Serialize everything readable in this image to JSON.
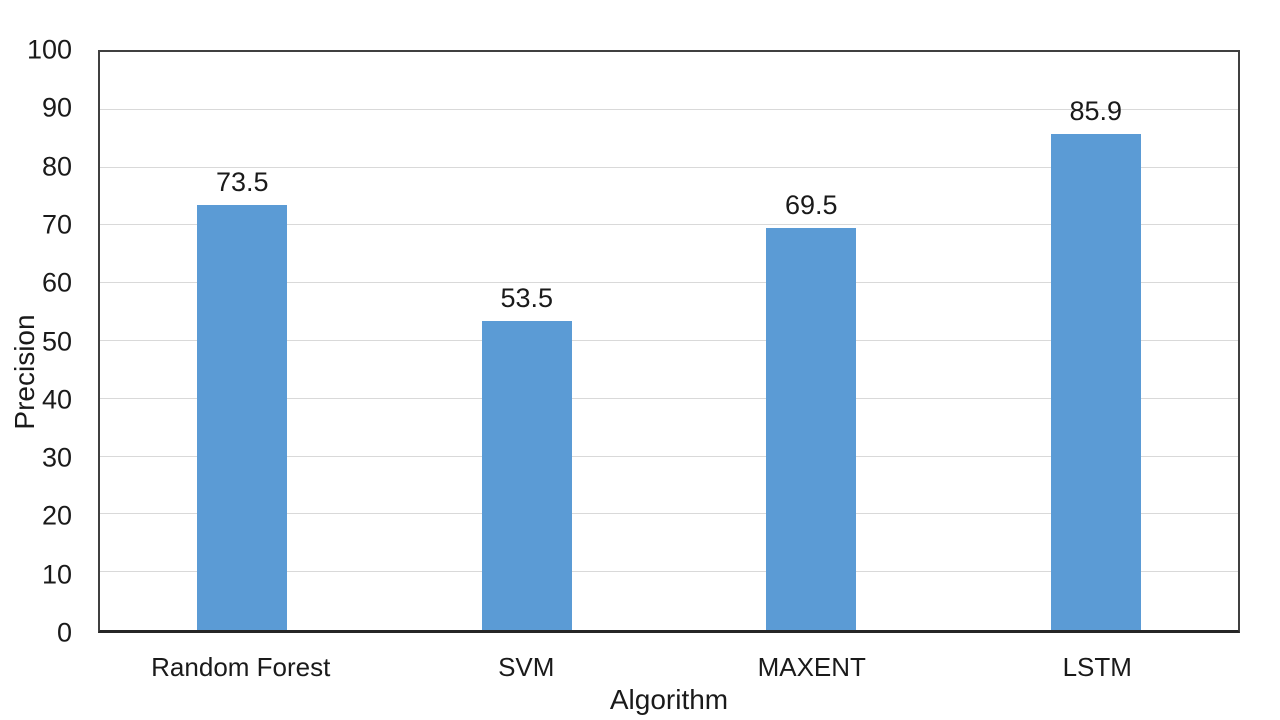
{
  "chart_data": {
    "type": "bar",
    "title": "",
    "categories": [
      "Random Forest",
      "SVM",
      "MAXENT",
      "LSTM"
    ],
    "values": [
      73.5,
      53.5,
      69.5,
      85.9
    ],
    "value_labels": [
      "73.5",
      "53.5",
      "69.5",
      "85.9"
    ],
    "xlabel": "Algorithm",
    "ylabel": "Precision",
    "ylim": [
      0,
      100
    ],
    "yticks": [
      0,
      10,
      20,
      30,
      40,
      50,
      60,
      70,
      80,
      90,
      100
    ],
    "grid": true,
    "legend_position": "none",
    "bar_color": "#5B9BD5",
    "gridline_color": "#D9D9D9",
    "axis_border_color": "#404040",
    "text_color": "#1a1a1a"
  }
}
